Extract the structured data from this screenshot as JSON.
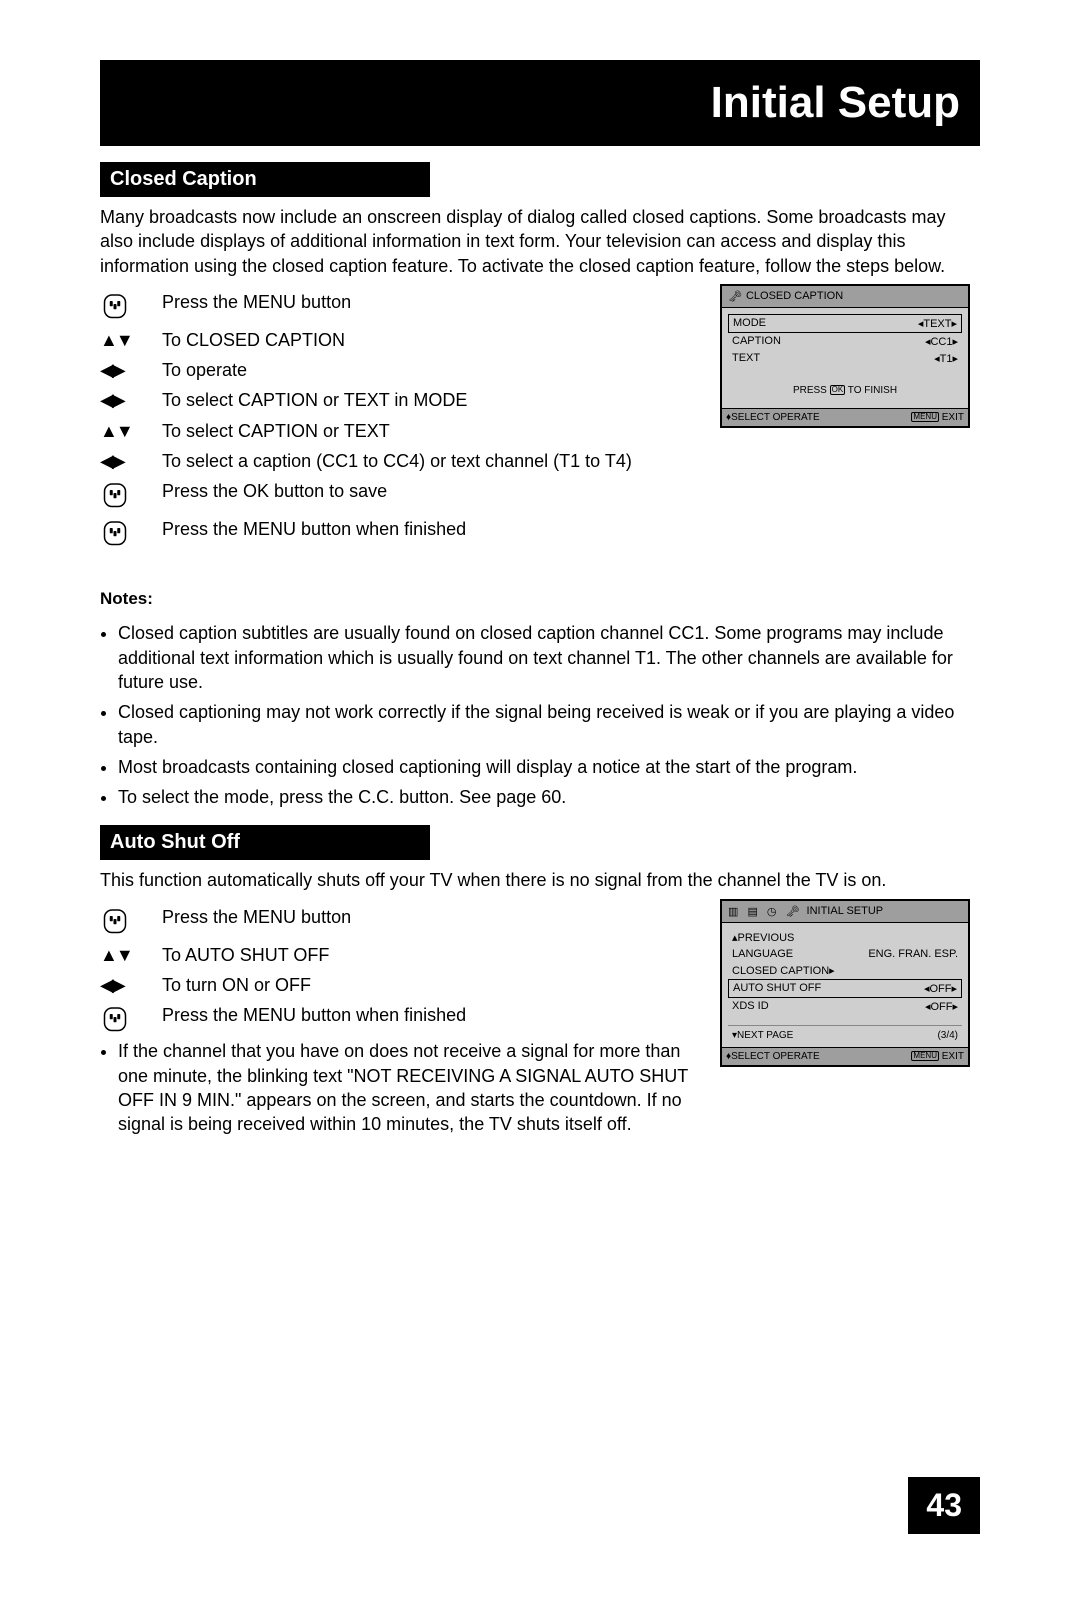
{
  "banner": {
    "title": "Initial Setup"
  },
  "section1": {
    "heading": "Closed Caption",
    "intro": "Many broadcasts now include an onscreen display of dialog called closed captions. Some broadcasts may also include displays of additional information in text form. Your television can access and display this information using the closed caption feature. To activate the closed caption feature, follow the steps below.",
    "steps": [
      {
        "icon": "remote",
        "text": "Press the MENU button",
        "smallcap": "ENU"
      },
      {
        "icon": "updown",
        "text": "To CLOSED CAPTION"
      },
      {
        "icon": "leftright",
        "text": "To operate"
      },
      {
        "icon": "leftright",
        "text": "To select CAPTION or TEXT in MODE"
      },
      {
        "icon": "updown",
        "text": "To select CAPTION or TEXT"
      },
      {
        "icon": "leftright",
        "text": "To select a caption (CC1 to CC4) or text channel (T1 to T4)"
      },
      {
        "icon": "remote",
        "text": "Press the OK button to save"
      },
      {
        "icon": "remote",
        "text": "Press the MENU button when finished",
        "smallcap": "ENU"
      }
    ],
    "notes_head": "Notes:",
    "notes": [
      "Closed caption subtitles are usually found on closed caption channel CC1. Some programs may include additional text information which is usually found on text channel T1. The other channels are available for future use.",
      "Closed captioning may not work correctly if the signal being received is weak or if you are playing a video tape.",
      "Most broadcasts containing closed captioning will display a notice at the start of the program.",
      "To select the mode, press the C.C. button. See page 60."
    ]
  },
  "section2": {
    "heading": "Auto Shut Off",
    "intro": "This function automatically shuts off your TV when there is no signal from the channel the TV is on.",
    "steps": [
      {
        "icon": "remote",
        "text": "Press the MENU button",
        "smallcap": "ENU"
      },
      {
        "icon": "updown",
        "text": "To AUTO SHUT OFF"
      },
      {
        "icon": "leftright",
        "text": "To turn ON or OFF"
      },
      {
        "icon": "remote",
        "text": "Press the MENU button when finished",
        "smallcap": "ENU"
      }
    ],
    "bullet": "If the channel that you have on does not receive a signal for more than one minute, the blinking text \"NOT RECEIVING A SIGNAL AUTO SHUT OFF IN 9 MIN.\" appears on the screen, and starts the countdown. If no signal is being received within 10 minutes, the TV shuts itself off."
  },
  "osd1": {
    "title": "CLOSED CAPTION",
    "rows": [
      {
        "label": "MODE",
        "value": "TEXT",
        "boxed": true
      },
      {
        "label": "CAPTION",
        "value": "CC1"
      },
      {
        "label": "TEXT",
        "value": "T1"
      }
    ],
    "press": "PRESS OK TO FINISH",
    "foot_left": "SELECT   OPERATE",
    "foot_right": "EXIT",
    "foot_menu": "MENU"
  },
  "osd2": {
    "title": "INITIAL SETUP",
    "prev": "PREVIOUS",
    "rows": [
      {
        "label": "LANGUAGE",
        "value": "ENG. FRAN. ESP."
      },
      {
        "label": "CLOSED CAPTION",
        "value": "",
        "arrow": true
      },
      {
        "label": "AUTO SHUT OFF",
        "value": "OFF",
        "boxed": true
      },
      {
        "label": "XDS ID",
        "value": "OFF"
      }
    ],
    "next_label": "NEXT PAGE",
    "next_page": "(3/4)",
    "foot_left": "SELECT   OPERATE",
    "foot_right": "EXIT",
    "foot_menu": "MENU"
  },
  "pagenum": "43",
  "glyphs": {
    "up": "▲",
    "down": "▼",
    "left": "◀",
    "right": "▶",
    "updown": "▲▼",
    "leftright": "◀▶",
    "lr": "◀ ▶",
    "ud_small": "♦",
    "lock": "🔒"
  }
}
